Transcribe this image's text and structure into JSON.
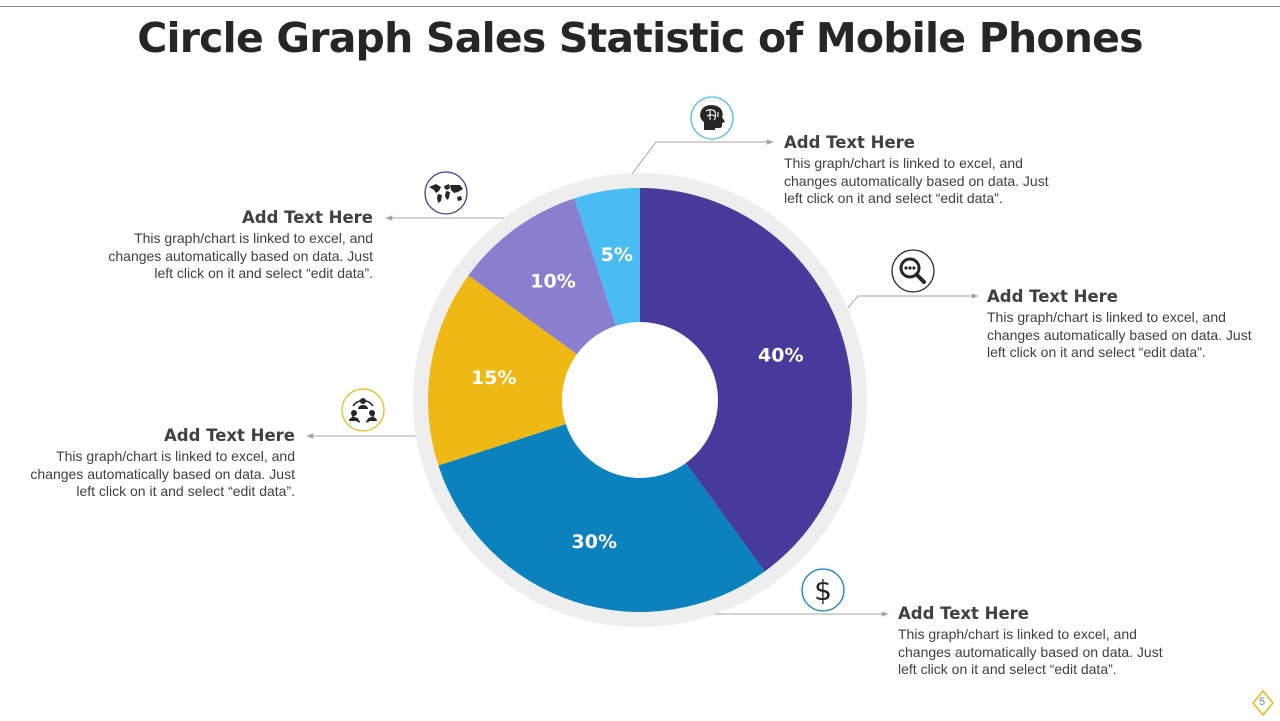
{
  "title": "Circle Graph Sales Statistic of Mobile Phones",
  "page_number": "5",
  "colors": {
    "series": [
      "#463a9a",
      "#0b81be",
      "#f0b814",
      "#8a7fcf",
      "#49bdf3"
    ],
    "ring": "#eeeeee",
    "text": "#404040"
  },
  "chart_data": {
    "type": "pie",
    "variant": "donut",
    "title": "Circle Graph Sales Statistic of Mobile Phones",
    "values": [
      40,
      30,
      15,
      10,
      5
    ],
    "labels": [
      "40%",
      "30%",
      "15%",
      "10%",
      "5%"
    ],
    "start": "12 o'clock",
    "direction": "clockwise"
  },
  "annotations": [
    {
      "heading": "Add Text Here",
      "body": "This graph/chart is linked to excel, and changes automatically based on data. Just left click on it and select “edit data”.",
      "icon": "brain-head-icon"
    },
    {
      "heading": "Add Text Here",
      "body": "This graph/chart is linked to excel, and changes automatically based on data. Just left click on it and select “edit data”.",
      "icon": "magnifier-icon"
    },
    {
      "heading": "Add Text Here",
      "body": "This graph/chart is linked to excel, and changes automatically based on data. Just left click on it and select “edit data”.",
      "icon": "dollar-icon"
    },
    {
      "heading": "Add Text Here",
      "body": "This graph/chart is linked to excel, and changes automatically based on data. Just left click on it and select “edit data”.",
      "icon": "team-network-icon"
    },
    {
      "heading": "Add Text Here",
      "body": "This graph/chart is linked to excel, and changes automatically based on data. Just left click on it and select “edit data”.",
      "icon": "world-map-icon"
    }
  ]
}
